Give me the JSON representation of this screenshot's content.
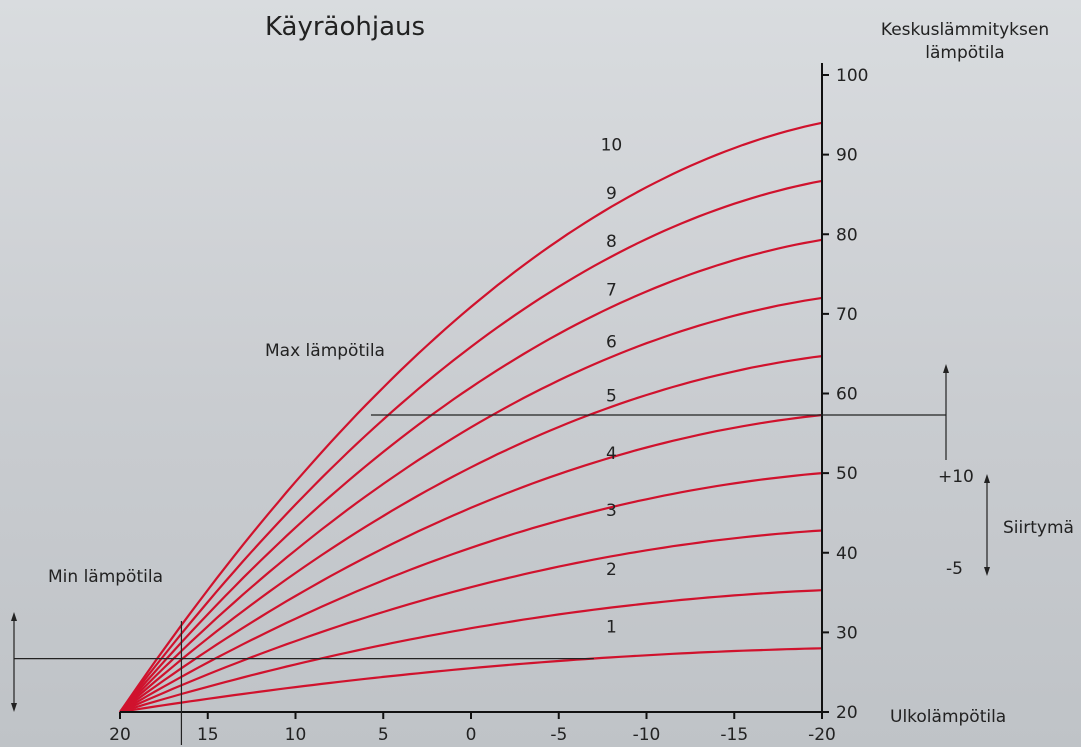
{
  "chart_data": {
    "type": "line",
    "title": "Käyräohjaus",
    "ylabel_line1": "Keskuslämmityksen",
    "ylabel_line2": "lämpötila",
    "xlabel": "Ulkolämpötila",
    "x_ticks": [
      "20",
      "15",
      "10",
      "5",
      "0",
      "-5",
      "-10",
      "-15",
      "-20"
    ],
    "y_ticks": [
      "20",
      "30",
      "40",
      "50",
      "60",
      "70",
      "80",
      "90",
      "100"
    ],
    "xlim": [
      20,
      -20
    ],
    "ylim": [
      20,
      100
    ],
    "origin": {
      "x": 20,
      "y": 20
    },
    "series": [
      {
        "name": "1",
        "end_value": 28.0,
        "label_x": -8.0,
        "label_y": 30.0
      },
      {
        "name": "2",
        "end_value": 35.3,
        "label_x": -8.0,
        "label_y": 37.2
      },
      {
        "name": "3",
        "end_value": 42.8,
        "label_x": -8.0,
        "label_y": 44.6
      },
      {
        "name": "4",
        "end_value": 50.0,
        "label_x": -8.0,
        "label_y": 51.8
      },
      {
        "name": "5",
        "end_value": 57.3,
        "label_x": -8.0,
        "label_y": 59.0
      },
      {
        "name": "6",
        "end_value": 64.7,
        "label_x": -8.0,
        "label_y": 65.8
      },
      {
        "name": "7",
        "end_value": 72.0,
        "label_x": -8.0,
        "label_y": 72.3
      },
      {
        "name": "8",
        "end_value": 79.3,
        "label_x": -8.0,
        "label_y": 78.4
      },
      {
        "name": "9",
        "end_value": 86.7,
        "label_x": -8.0,
        "label_y": 84.4
      },
      {
        "name": "10",
        "end_value": 94.0,
        "label_x": -8.0,
        "label_y": 90.5
      }
    ],
    "annotations": {
      "max_label": "Max lämpötila",
      "max_value": 57.3,
      "max_x_start": 5.7,
      "min_label": "Min lämpötila",
      "min_value": 26.7,
      "min_x_cut": 16.5,
      "shift_plus": "+10",
      "shift_minus": "-5",
      "shift_label": "Siirtymä"
    }
  }
}
